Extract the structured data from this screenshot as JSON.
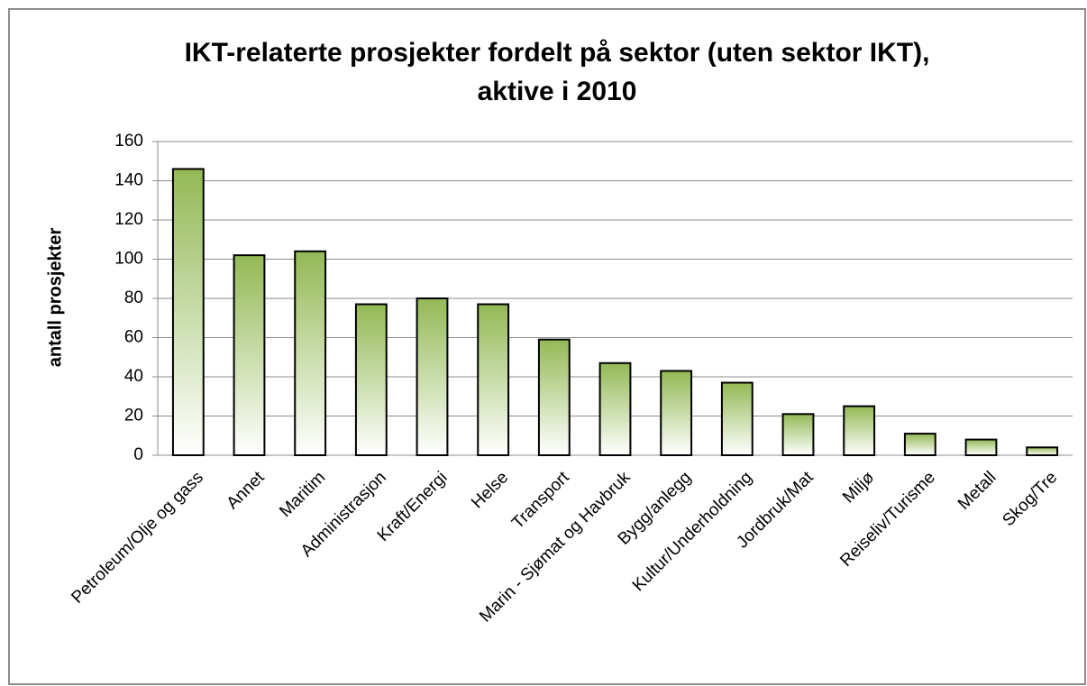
{
  "chart_data": {
    "type": "bar",
    "title": [
      "IKT-relaterte prosjekter fordelt på sektor (uten sektor IKT),",
      "aktive i 2010"
    ],
    "ylabel": "antall prosjekter",
    "categories": [
      "Petroleum/Olje og gass",
      "Annet",
      "Maritim",
      "Administrasjon",
      "Kraft/Energi",
      "Helse",
      "Transport",
      "Marin - Sjømat og Havbruk",
      "Bygg/anlegg",
      "Kultur/Underholdning",
      "Jordbruk/Mat",
      "Miljø",
      "Reiseliv/Turisme",
      "Metall",
      "Skog/Tre"
    ],
    "values": [
      146,
      102,
      104,
      77,
      80,
      77,
      59,
      47,
      43,
      37,
      21,
      25,
      11,
      8,
      4
    ],
    "color": "#93b955",
    "ylim": [
      0,
      160
    ],
    "yticks": [
      0,
      20,
      40,
      60,
      80,
      100,
      120,
      140,
      160
    ],
    "grid": true
  }
}
